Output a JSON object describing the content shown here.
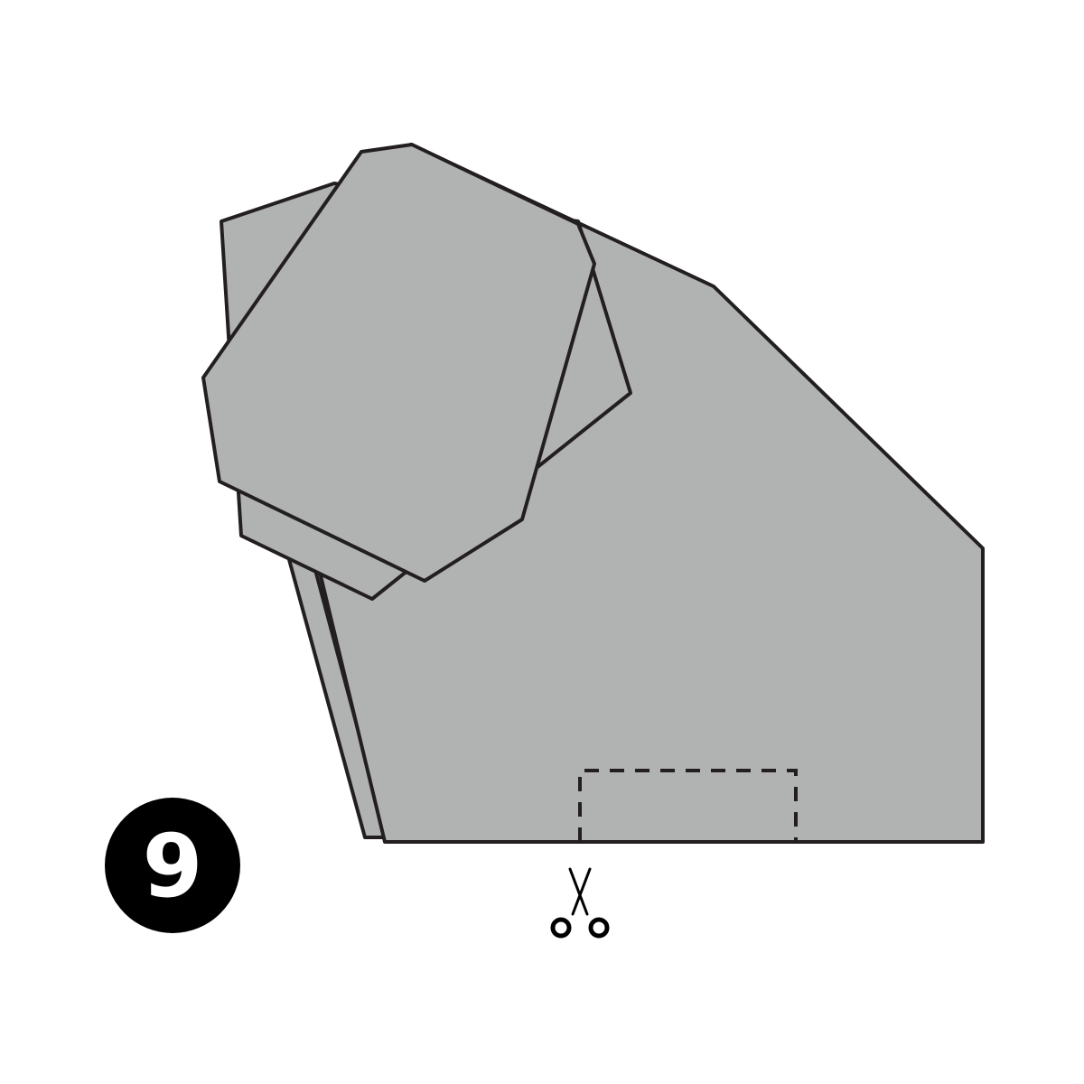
{
  "step": {
    "number": "9",
    "badge_color": "#000000",
    "text_color": "#ffffff"
  },
  "colors": {
    "paper_fill": "#b1b3b2",
    "outline": "#231f20",
    "background": "#ffffff"
  },
  "cut_instruction": {
    "icon": "scissors-icon",
    "line_style": "dashed"
  }
}
